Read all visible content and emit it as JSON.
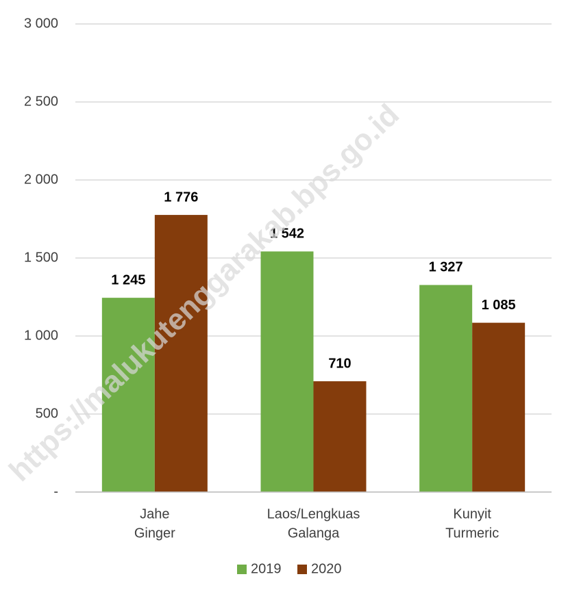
{
  "chart_data": {
    "type": "bar",
    "categories": [
      [
        "Jahe",
        "Ginger"
      ],
      [
        "Laos/Lengkuas",
        "Galanga"
      ],
      [
        "Kunyit",
        "Turmeric"
      ]
    ],
    "series": [
      {
        "name": "2019",
        "color": "#70ad47",
        "values": [
          1245,
          1542,
          1327
        ],
        "value_labels": [
          "1 245",
          "1 542",
          "1 327"
        ]
      },
      {
        "name": "2020",
        "color": "#843c0c",
        "values": [
          1776,
          710,
          1085
        ],
        "value_labels": [
          "1 776",
          "710",
          "1 085"
        ]
      }
    ],
    "ylim": [
      0,
      3000
    ],
    "yticks": [
      {
        "value": 0,
        "label": "-"
      },
      500,
      {
        "value": 1000,
        "label": "1 000"
      },
      {
        "value": 1500,
        "label": "1 500"
      },
      {
        "value": 2000,
        "label": "2 000"
      },
      {
        "value": 2500,
        "label": "2 500"
      },
      {
        "value": 3000,
        "label": "3 000"
      }
    ],
    "grid": true,
    "legend": "bottom",
    "watermark": "https://malukutenggarakab.bps.go.id"
  }
}
